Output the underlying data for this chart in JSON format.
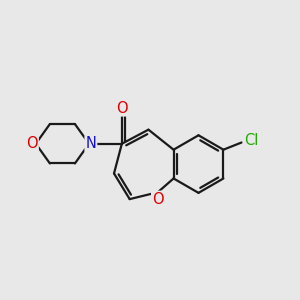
{
  "background": "#e8e8e8",
  "bond_color": "#1a1a1a",
  "bond_lw": 1.6,
  "font_size": 10.5,
  "figsize": [
    3.0,
    3.0
  ],
  "dpi": 100,
  "atom_colors": {
    "O": "#dd0000",
    "N": "#1111cc",
    "Cl": "#22aa00",
    "C": "#1a1a1a"
  },
  "xlim": [
    0.0,
    9.5
  ],
  "ylim": [
    1.2,
    6.5
  ]
}
